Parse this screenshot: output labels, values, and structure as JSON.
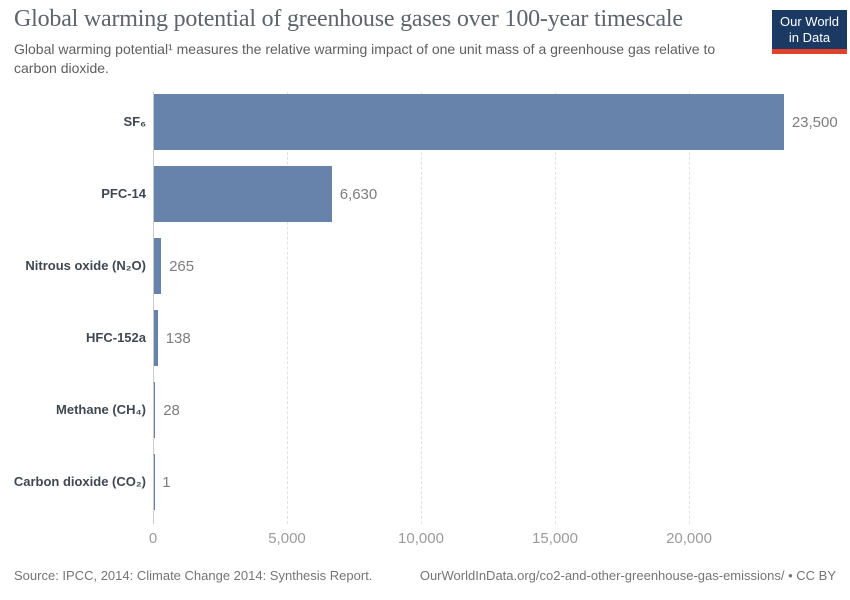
{
  "header": {
    "title": "Global warming potential of greenhouse gases over 100-year timescale",
    "subtitle_line1": "Global warming potential¹ measures the relative warming impact of one unit mass of a greenhouse gas relative to",
    "subtitle_line2": "carbon dioxide.",
    "logo_line1": "Our World",
    "logo_line2": "in Data"
  },
  "chart_data": {
    "type": "bar",
    "orientation": "horizontal",
    "title": "Global warming potential of greenhouse gases over 100-year timescale",
    "categories": [
      "SF₆",
      "PFC-14",
      "Nitrous oxide (N₂O)",
      "HFC-152a",
      "Methane (CH₄)",
      "Carbon dioxide (CO₂)"
    ],
    "values": [
      23500,
      6630,
      265,
      138,
      28,
      1
    ],
    "value_labels": [
      "23,500",
      "6,630",
      "265",
      "138",
      "28",
      "1"
    ],
    "x_tick_values": [
      0,
      5000,
      10000,
      15000,
      20000
    ],
    "x_tick_labels": [
      "0",
      "5,000",
      "10,000",
      "15,000",
      "20,000"
    ],
    "xlim": [
      0,
      25820
    ],
    "xlabel": "",
    "ylabel": "",
    "grid": "vertical-dashed",
    "legend": "none",
    "bar_color": "#6782ab"
  },
  "footer": {
    "source": "Source: IPCC, 2014: Climate Change 2014: Synthesis Report.",
    "link": "OurWorldInData.org/co2-and-other-greenhouse-gas-emissions/ • CC BY"
  },
  "colors": {
    "bar": "#6782ab",
    "logo_bg": "#1a3a63",
    "logo_red": "#e0422d",
    "gridline": "#e2e2e2",
    "axis_line": "#cbcbcb",
    "tick_label": "#9b9b9b",
    "value_label": "#7d7d7d",
    "category_label": "#3f4852",
    "title": "#5d646b"
  }
}
